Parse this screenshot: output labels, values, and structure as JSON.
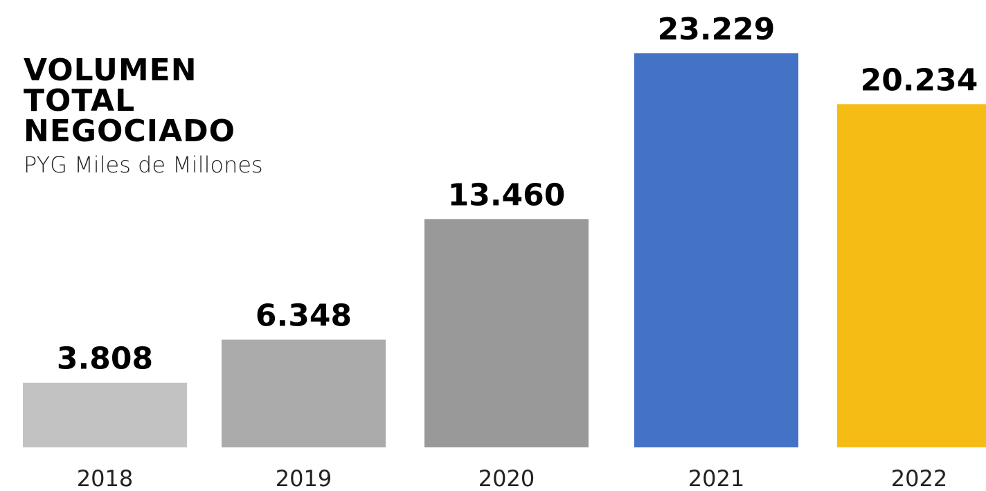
{
  "title_lines": [
    "VOLUMEN",
    "TOTAL",
    "NEGOCIADO"
  ],
  "subtitle": "PYG Miles de Millones",
  "chart_data": {
    "type": "bar",
    "title": "VOLUMEN TOTAL NEGOCIADO",
    "subtitle": "PYG Miles de Millones",
    "xlabel": "",
    "ylabel": "",
    "ylim": [
      0,
      25000
    ],
    "grid": false,
    "legend": "none",
    "categories": [
      "2018",
      "2019",
      "2020",
      "2021",
      "2022"
    ],
    "values": [
      3808,
      6348,
      13460,
      23229,
      20234
    ],
    "value_labels": [
      "3.808",
      "6.348",
      "13.460",
      "23.229",
      "20.234"
    ],
    "colors": [
      "#c2c2c2",
      "#ababab",
      "#999999",
      "#4472c4",
      "#f6bc16"
    ]
  }
}
